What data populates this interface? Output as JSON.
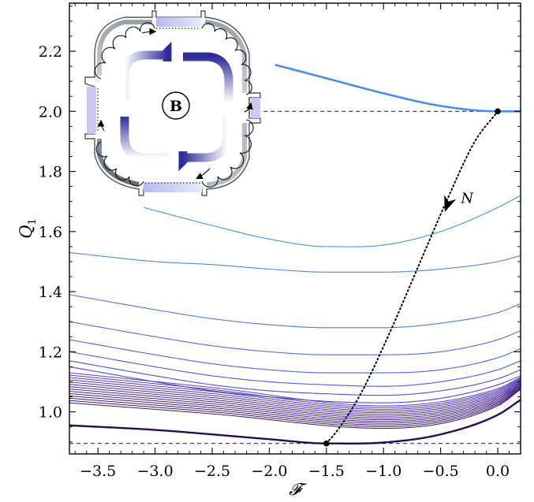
{
  "chart_data": {
    "type": "line",
    "xlabel": "𝓕",
    "ylabel": "Q",
    "ylabel_sub": "1",
    "xlim": [
      -3.75,
      0.2
    ],
    "ylim": [
      0.86,
      2.36
    ],
    "grid": false,
    "xticks": [
      -3.5,
      -3.0,
      -2.5,
      -2.0,
      -1.5,
      -1.0,
      -0.5,
      0.0
    ],
    "xtick_labels": [
      "−3.5",
      "−3.0",
      "−2.5",
      "−2.0",
      "−1.5",
      "−1.0",
      "−0.5",
      "0.0"
    ],
    "yticks": [
      1.0,
      1.2,
      1.4,
      1.6,
      1.8,
      2.0,
      2.2
    ],
    "ytick_labels": [
      "1.0",
      "1.2",
      "1.4",
      "1.6",
      "1.8",
      "2.0",
      "2.2"
    ],
    "reference_lines": [
      {
        "y": 2.0,
        "x_from": -2.05,
        "x_to": 0.2
      },
      {
        "y": 0.895,
        "x_from": -3.75,
        "x_to": 0.2
      }
    ],
    "top_curve": {
      "x": [
        -1.95,
        -1.5,
        -1.0,
        -0.5,
        0.0,
        0.2
      ],
      "y": [
        2.155,
        2.11,
        2.06,
        2.018,
        2.0,
        2.0
      ]
    },
    "bottom_curve": {
      "x": [
        -3.75,
        -3.0,
        -2.5,
        -2.0,
        -1.5,
        -1.0,
        -0.5,
        0.0,
        0.2
      ],
      "y": [
        0.955,
        0.94,
        0.925,
        0.909,
        0.895,
        0.898,
        0.925,
        0.99,
        1.04
      ]
    },
    "family_curves": [
      {
        "x": [
          -3.1,
          -2.5,
          -2.0,
          -1.5,
          -1.0,
          -0.5,
          0.0,
          0.2
        ],
        "y": [
          1.68,
          1.62,
          1.575,
          1.55,
          1.555,
          1.6,
          1.68,
          1.72
        ]
      },
      {
        "x": [
          -3.75,
          -3.0,
          -2.5,
          -2.0,
          -1.5,
          -1.0,
          -0.5,
          0.0,
          0.2
        ],
        "y": [
          1.53,
          1.5,
          1.49,
          1.475,
          1.465,
          1.465,
          1.475,
          1.5,
          1.52
        ]
      },
      {
        "x": [
          -3.75,
          -3.0,
          -2.5,
          -2.0,
          -1.5,
          -1.0,
          -0.5,
          0.0,
          0.2
        ],
        "y": [
          1.39,
          1.34,
          1.31,
          1.29,
          1.28,
          1.28,
          1.295,
          1.33,
          1.36
        ]
      },
      {
        "x": [
          -3.75,
          -3.0,
          -2.5,
          -2.0,
          -1.5,
          -1.0,
          -0.5,
          0.0,
          0.2
        ],
        "y": [
          1.3,
          1.25,
          1.22,
          1.2,
          1.19,
          1.19,
          1.2,
          1.24,
          1.27
        ]
      },
      {
        "x": [
          -3.75,
          -3.0,
          -2.5,
          -2.0,
          -1.5,
          -1.0,
          -0.5,
          0.0,
          0.2
        ],
        "y": [
          1.24,
          1.19,
          1.16,
          1.14,
          1.13,
          1.13,
          1.14,
          1.18,
          1.21
        ]
      },
      {
        "x": [
          -3.75,
          -3.0,
          -2.5,
          -2.0,
          -1.5,
          -1.0,
          -0.5,
          0.0,
          0.2
        ],
        "y": [
          1.2,
          1.15,
          1.12,
          1.1,
          1.09,
          1.085,
          1.1,
          1.14,
          1.17
        ]
      },
      {
        "x": [
          -3.75,
          -3.0,
          -2.5,
          -2.0,
          -1.5,
          -1.0,
          -0.5,
          0.0,
          0.2
        ],
        "y": [
          1.17,
          1.12,
          1.09,
          1.07,
          1.06,
          1.055,
          1.07,
          1.11,
          1.14
        ]
      },
      {
        "x": [
          -3.75,
          -3.0,
          -2.5,
          -2.0,
          -1.5,
          -1.0,
          -0.5,
          0.0,
          0.2
        ],
        "y": [
          1.15,
          1.1,
          1.07,
          1.05,
          1.035,
          1.03,
          1.045,
          1.09,
          1.12
        ]
      }
    ],
    "dense_curves": {
      "count": 14,
      "start_y": [
        1.13,
        1.03
      ],
      "min_y": [
        1.02,
        0.945
      ],
      "end_y": [
        1.115,
        1.075
      ]
    },
    "trajectory": {
      "x": [
        0.0,
        -0.2,
        -0.45,
        -0.7,
        -0.95,
        -1.2,
        -1.4,
        -1.5
      ],
      "y": [
        2.0,
        1.9,
        1.7,
        1.48,
        1.26,
        1.06,
        0.94,
        0.895
      ]
    },
    "trajectory_label": "N",
    "markers": [
      {
        "x": 0.0,
        "y": 2.0
      },
      {
        "x": -1.5,
        "y": 0.895
      }
    ],
    "inset": {
      "label": "B"
    },
    "colors": {
      "light_blue": "#4a90e2",
      "dark_purple": "#2b0b4d",
      "inset_grey": "#7f8c94",
      "inset_blue": "#3b3fa6"
    }
  }
}
